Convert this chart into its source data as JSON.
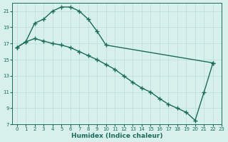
{
  "xlabel": "Humidex (Indice chaleur)",
  "bg_color": "#d7f0ec",
  "line_color": "#1a6b5a",
  "grid_color": "#b8ddd8",
  "line1_x": [
    0,
    1,
    2,
    3,
    4,
    5,
    6,
    7,
    8,
    9,
    10,
    22
  ],
  "line1_y": [
    16.5,
    17.2,
    19.5,
    20.0,
    21.0,
    21.5,
    21.5,
    21.0,
    20.0,
    18.5,
    16.8,
    14.6
  ],
  "line2_x": [
    0,
    1,
    2,
    3,
    4,
    5,
    6,
    7,
    8,
    9,
    10,
    11,
    12,
    13,
    14,
    15,
    16,
    17,
    18,
    19,
    20,
    21,
    22
  ],
  "line2_y": [
    16.5,
    17.2,
    17.6,
    17.3,
    17.0,
    16.8,
    16.5,
    16.0,
    15.5,
    15.0,
    14.4,
    13.8,
    13.0,
    12.2,
    11.5,
    11.0,
    10.2,
    9.5,
    9.0,
    8.5,
    7.5,
    11.0,
    14.6
  ],
  "ylim": [
    7,
    22
  ],
  "xlim": [
    -0.5,
    23
  ],
  "yticks": [
    7,
    9,
    11,
    13,
    15,
    17,
    19,
    21
  ],
  "xticks": [
    0,
    1,
    2,
    3,
    4,
    5,
    6,
    7,
    8,
    9,
    10,
    11,
    12,
    13,
    14,
    15,
    16,
    17,
    18,
    19,
    20,
    21,
    22,
    23
  ],
  "xtick_labels": [
    "0",
    "1",
    "2",
    "3",
    "4",
    "5",
    "6",
    "7",
    "8",
    "9",
    "10",
    "11",
    "12",
    "13",
    "14",
    "15",
    "16",
    "17",
    "18",
    "19",
    "20",
    "21",
    "22",
    "23"
  ],
  "markersize": 4,
  "linewidth": 1.0,
  "label_fontsize": 6.5,
  "tick_fontsize": 5.0
}
